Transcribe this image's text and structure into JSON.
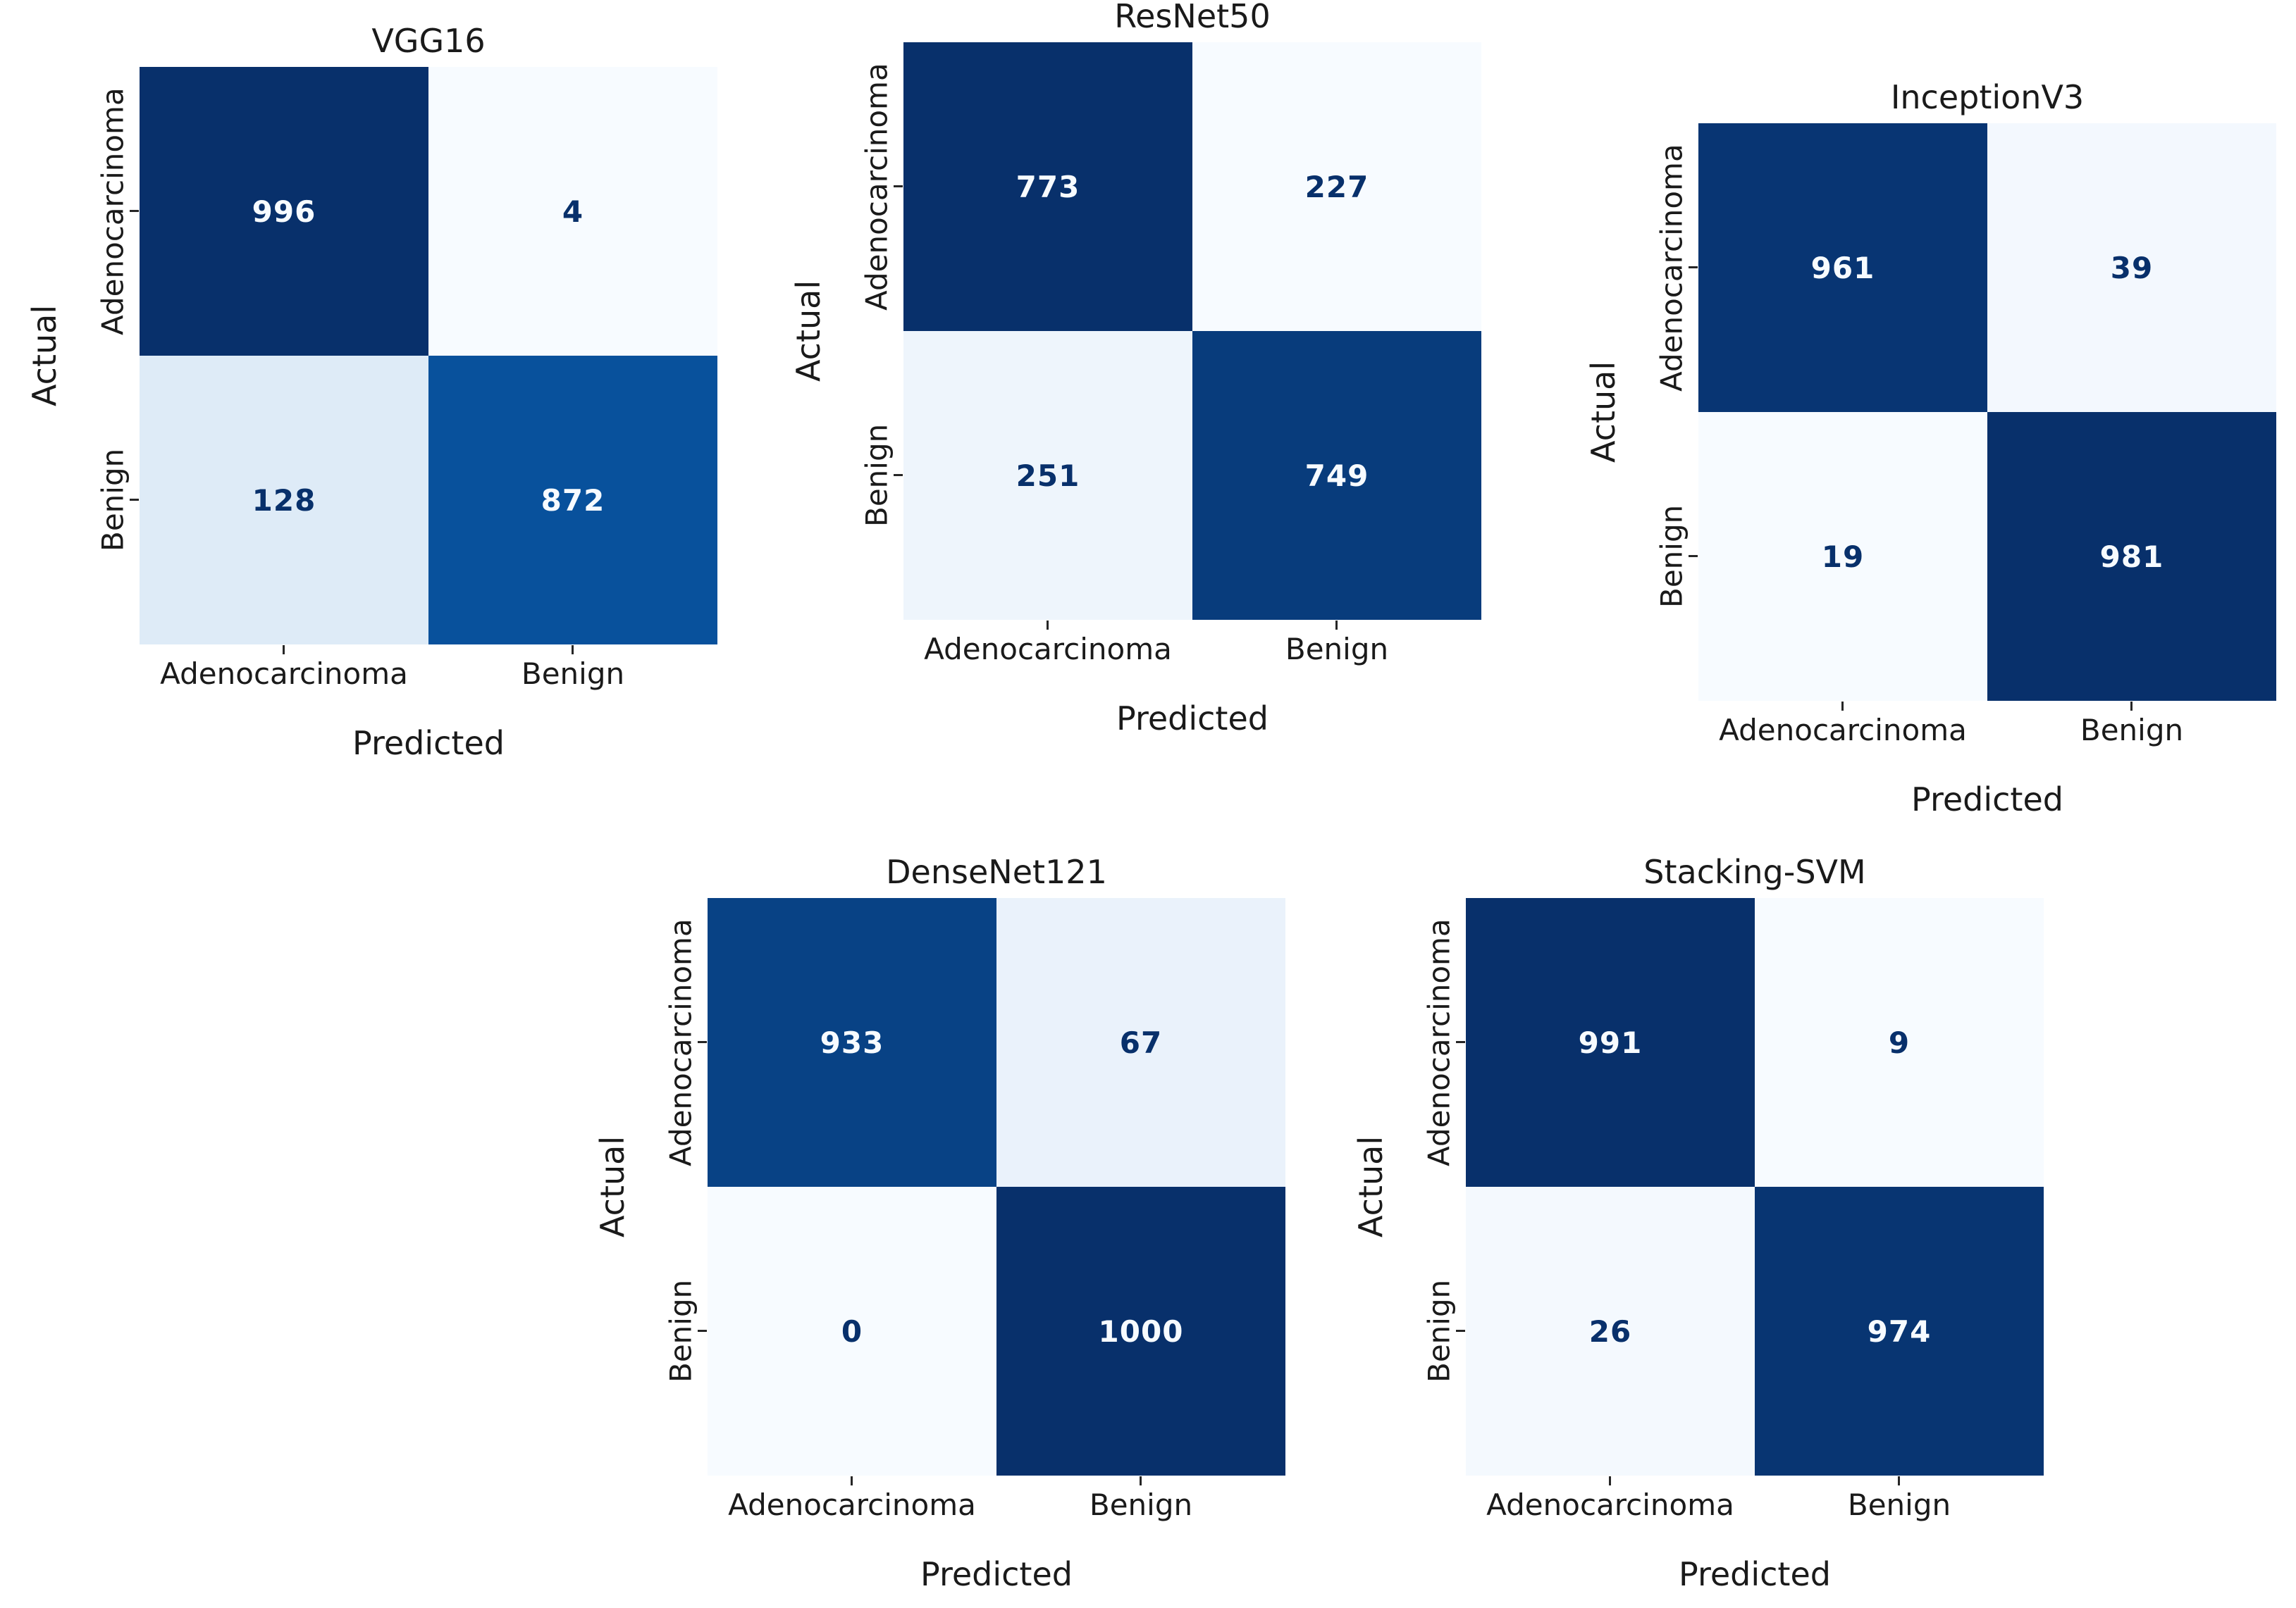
{
  "figure": {
    "background": "#ffffff",
    "colormap": "Blues"
  },
  "colors": {
    "blues_stops": [
      [
        247,
        251,
        255
      ],
      [
        222,
        235,
        247
      ],
      [
        198,
        219,
        239
      ],
      [
        158,
        202,
        225
      ],
      [
        107,
        174,
        214
      ],
      [
        66,
        146,
        198
      ],
      [
        33,
        113,
        181
      ],
      [
        8,
        81,
        156
      ],
      [
        8,
        48,
        107
      ]
    ],
    "text_on_dark": "#f7fbff",
    "text_on_light": "#08306b",
    "label_color": "#1a1a1a",
    "tick_color": "#262626"
  },
  "chart_data": [
    {
      "type": "heatmap",
      "title": "VGG16",
      "xlabel": "Predicted",
      "ylabel": "Actual",
      "classes": [
        "Adenocarcinoma",
        "Benign"
      ],
      "matrix": [
        [
          996,
          4
        ],
        [
          128,
          872
        ]
      ]
    },
    {
      "type": "heatmap",
      "title": "ResNet50",
      "xlabel": "Predicted",
      "ylabel": "Actual",
      "classes": [
        "Adenocarcinoma",
        "Benign"
      ],
      "matrix": [
        [
          773,
          227
        ],
        [
          251,
          749
        ]
      ]
    },
    {
      "type": "heatmap",
      "title": "InceptionV3",
      "xlabel": "Predicted",
      "ylabel": "Actual",
      "classes": [
        "Adenocarcinoma",
        "Benign"
      ],
      "matrix": [
        [
          961,
          39
        ],
        [
          19,
          981
        ]
      ]
    },
    {
      "type": "heatmap",
      "title": "DenseNet121",
      "xlabel": "Predicted",
      "ylabel": "Actual",
      "classes": [
        "Adenocarcinoma",
        "Benign"
      ],
      "matrix": [
        [
          933,
          67
        ],
        [
          0,
          1000
        ]
      ]
    },
    {
      "type": "heatmap",
      "title": "Stacking-SVM",
      "xlabel": "Predicted",
      "ylabel": "Actual",
      "classes": [
        "Adenocarcinoma",
        "Benign"
      ],
      "matrix": [
        [
          991,
          9
        ],
        [
          26,
          974
        ]
      ]
    }
  ]
}
